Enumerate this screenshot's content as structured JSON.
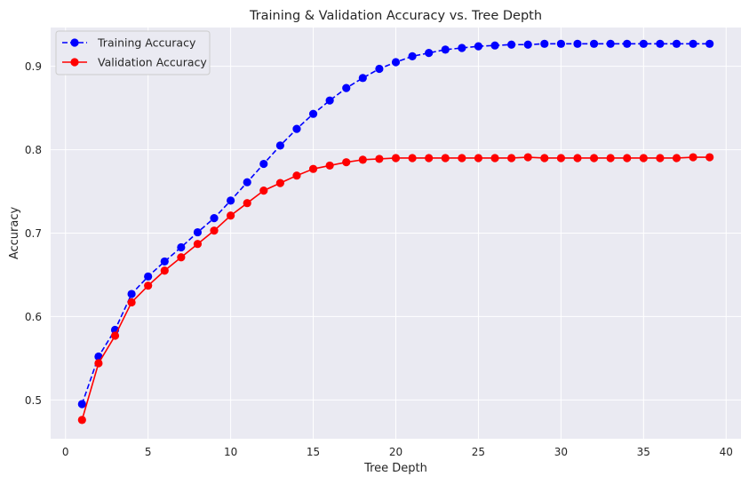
{
  "chart_data": {
    "type": "line",
    "title": "Training & Validation Accuracy vs. Tree Depth",
    "xlabel": "Tree Depth",
    "ylabel": "Accuracy",
    "xlim": [
      -0.9,
      40.9
    ],
    "ylim": [
      0.4535,
      0.9465
    ],
    "xticks": [
      0,
      5,
      10,
      15,
      20,
      25,
      30,
      35,
      40
    ],
    "yticks": [
      0.5,
      0.6,
      0.7,
      0.8,
      0.9
    ],
    "grid": true,
    "legend_position": "top-left",
    "x": [
      1,
      2,
      3,
      4,
      5,
      6,
      7,
      8,
      9,
      10,
      11,
      12,
      13,
      14,
      15,
      16,
      17,
      18,
      19,
      20,
      21,
      22,
      23,
      24,
      25,
      26,
      27,
      28,
      29,
      30,
      31,
      32,
      33,
      34,
      35,
      36,
      37,
      38,
      39
    ],
    "series": [
      {
        "name": "Training Accuracy",
        "color": "#0000ff",
        "linestyle": "dashed",
        "marker": "circle",
        "values": [
          0.495,
          0.552,
          0.584,
          0.627,
          0.648,
          0.666,
          0.683,
          0.701,
          0.718,
          0.739,
          0.761,
          0.783,
          0.805,
          0.825,
          0.843,
          0.859,
          0.874,
          0.886,
          0.897,
          0.905,
          0.912,
          0.916,
          0.92,
          0.922,
          0.924,
          0.925,
          0.926,
          0.926,
          0.927,
          0.927,
          0.927,
          0.927,
          0.927,
          0.927,
          0.927,
          0.927,
          0.927,
          0.927,
          0.927
        ]
      },
      {
        "name": "Validation Accuracy",
        "color": "#ff0000",
        "linestyle": "solid",
        "marker": "circle",
        "values": [
          0.476,
          0.544,
          0.577,
          0.617,
          0.637,
          0.655,
          0.671,
          0.687,
          0.703,
          0.721,
          0.736,
          0.751,
          0.76,
          0.769,
          0.777,
          0.781,
          0.785,
          0.788,
          0.789,
          0.79,
          0.79,
          0.79,
          0.79,
          0.79,
          0.79,
          0.79,
          0.79,
          0.791,
          0.79,
          0.79,
          0.79,
          0.79,
          0.79,
          0.79,
          0.79,
          0.79,
          0.79,
          0.791,
          0.791
        ]
      }
    ]
  }
}
